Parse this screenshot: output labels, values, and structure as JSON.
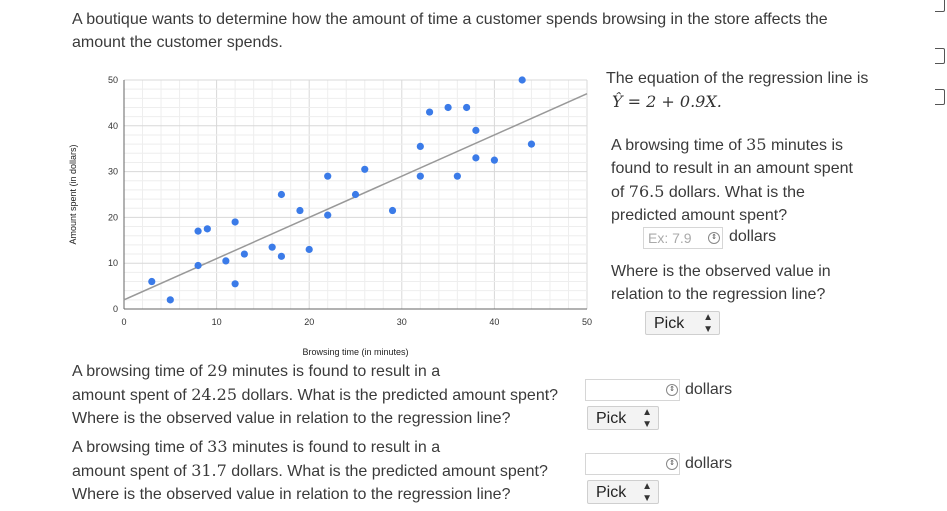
{
  "intro": "A boutique wants to determine how the amount of time a customer spends browsing in the store affects the amount the customer spends.",
  "chart_data": {
    "type": "scatter",
    "xlabel": "Browsing time (in minutes)",
    "ylabel": "Amount spent (in dollars)",
    "xlim": [
      0,
      50
    ],
    "ylim": [
      0,
      50
    ],
    "xticks": [
      "0",
      "10",
      "20",
      "30",
      "40",
      "50"
    ],
    "yticks": [
      "0",
      "10",
      "20",
      "30",
      "40",
      "50"
    ],
    "grid": true,
    "points": [
      [
        3,
        6
      ],
      [
        5,
        2
      ],
      [
        8,
        9.5
      ],
      [
        8,
        17
      ],
      [
        9,
        17.5
      ],
      [
        11,
        10.5
      ],
      [
        12,
        5.5
      ],
      [
        12,
        19
      ],
      [
        13,
        12
      ],
      [
        16,
        13.5
      ],
      [
        17,
        11.5
      ],
      [
        17,
        25
      ],
      [
        19,
        21.5
      ],
      [
        20,
        13
      ],
      [
        22,
        29
      ],
      [
        22,
        20.5
      ],
      [
        25,
        25
      ],
      [
        26,
        30.5
      ],
      [
        29,
        21.5
      ],
      [
        32,
        35.5
      ],
      [
        32,
        29
      ],
      [
        33,
        43
      ],
      [
        35,
        44
      ],
      [
        36,
        29
      ],
      [
        37,
        44
      ],
      [
        38,
        39
      ],
      [
        38,
        33
      ],
      [
        40,
        32.5
      ],
      [
        43,
        50
      ],
      [
        44,
        36
      ]
    ],
    "regression": {
      "intercept": 2,
      "slope": 0.9
    },
    "point_color": "#3b7be8",
    "line_color": "#999999"
  },
  "right": {
    "eq_intro": "The equation of the regression line is",
    "equation": "Ŷ = 2 + 0.9X.",
    "q1_a": "A browsing time of ",
    "q1_t": "35",
    "q1_b": " minutes is found to result in an amount spent of ",
    "q1_v": "76.5",
    "q1_c": " dollars. What is the predicted amount spent?",
    "input_placeholder": "Ex: 7.9",
    "unit": "dollars",
    "q1_where": "Where is the observed value in relation to the regression line?",
    "pick": "Pick"
  },
  "q2": {
    "l1a": "A browsing time of ",
    "t": "29",
    "l1b": " minutes is found to result in a",
    "l2a": "amount spent of ",
    "v": "24.25",
    "l2b": " dollars. What is the predicted amount spent?",
    "where": "Where is the observed value in relation to the regression line?",
    "unit": "dollars",
    "pick": "Pick"
  },
  "q3": {
    "l1a": "A browsing time of ",
    "t": "33",
    "l1b": " minutes is found to result in a",
    "l2a": "amount spent of ",
    "v": "31.7",
    "l2b": " dollars. What is the predicted amount spent?",
    "where": "Where is the observed value in relation to the regression line?",
    "unit": "dollars",
    "pick": "Pick"
  }
}
